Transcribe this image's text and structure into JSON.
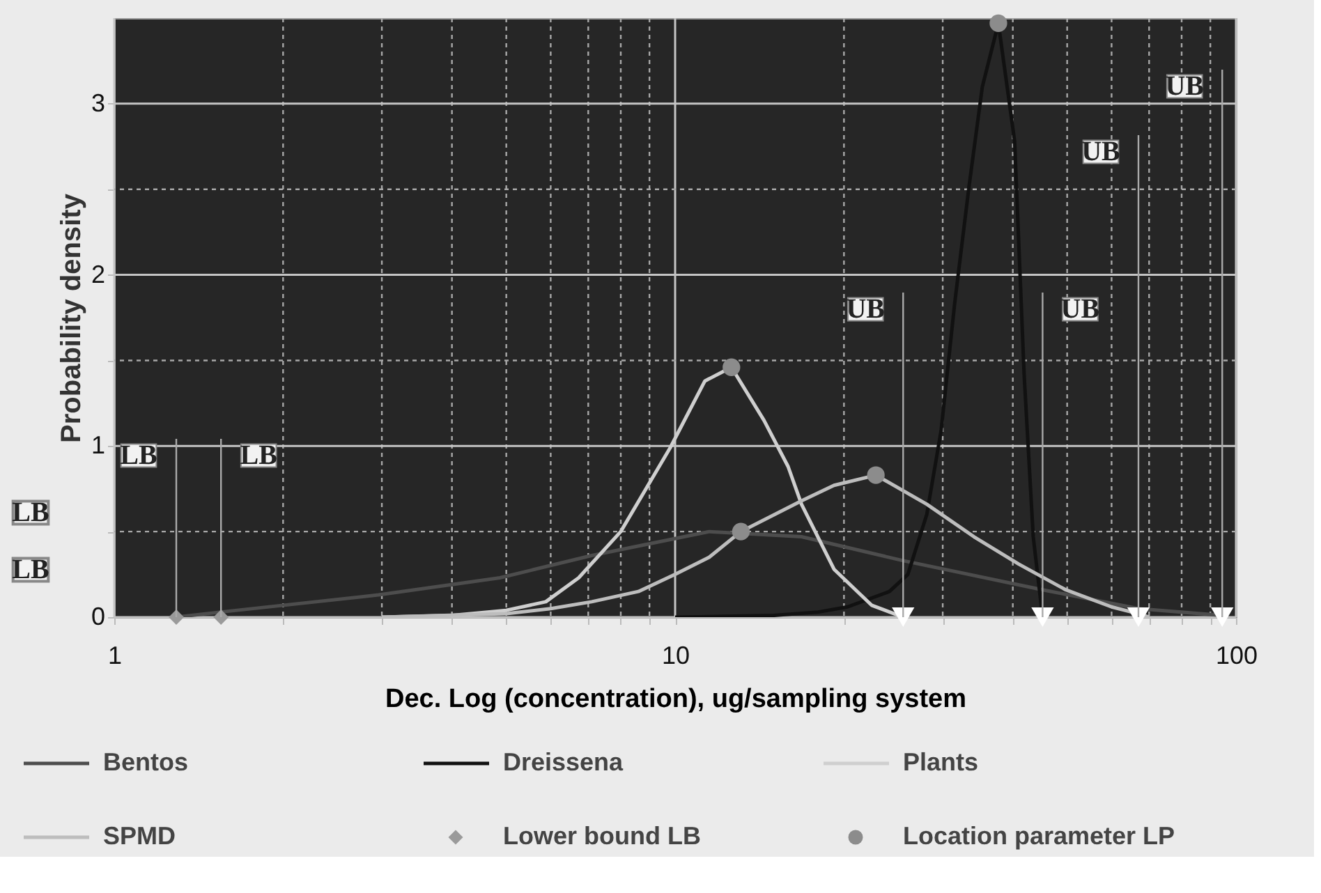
{
  "chart_data": {
    "type": "line",
    "xlabel": "Dec. Log (concentration), ug/sampling system",
    "ylabel": "Probability density",
    "log": "x",
    "xlim": [
      1,
      100
    ],
    "ylim": [
      0,
      3.5
    ],
    "xticks": [
      1,
      {
        "value": 2,
        "label": null
      },
      {
        "value": 3,
        "label": null
      },
      {
        "value": 4,
        "label": null
      },
      {
        "value": 5,
        "label": null
      },
      {
        "value": 6,
        "label": null
      },
      {
        "value": 7,
        "label": null
      },
      {
        "value": 8,
        "label": null
      },
      {
        "value": 9,
        "label": null
      },
      10,
      {
        "value": 20,
        "label": null
      },
      {
        "value": 30,
        "label": null
      },
      {
        "value": 40,
        "label": null
      },
      {
        "value": 50,
        "label": null
      },
      {
        "value": 60,
        "label": null
      },
      {
        "value": 70,
        "label": null
      },
      {
        "value": 80,
        "label": null
      },
      {
        "value": 90,
        "label": null
      },
      100
    ],
    "yticks": [
      0,
      {
        "value": 0.5,
        "label": null
      },
      1,
      {
        "value": 1.5,
        "label": null
      },
      2,
      {
        "value": 2.5,
        "label": null
      },
      3
    ],
    "grid": true,
    "legend": "bottom",
    "line_style": "solid",
    "series": [
      {
        "name": "Bentos",
        "color": "#4d4d4d",
        "x": [
          1.29,
          1.55,
          2.96,
          4.87,
          7.1,
          11.5,
          16.8,
          25.5,
          45.2,
          67,
          94.5
        ],
        "values": [
          0,
          0.03,
          0.13,
          0.23,
          0.36,
          0.5,
          0.47,
          0.33,
          0.16,
          0.05,
          0.01
        ]
      },
      {
        "name": "Dreissena",
        "color": "#111111",
        "x": [
          10,
          15,
          18,
          20.3,
          24.1,
          26,
          28.1,
          29.8,
          31.5,
          33.4,
          35.3,
          37.7,
          40.3,
          41.9,
          43.5,
          45.2
        ],
        "values": [
          0,
          0.01,
          0.03,
          0.06,
          0.15,
          0.25,
          0.6,
          1.09,
          1.83,
          2.51,
          3.1,
          3.47,
          2.78,
          1.42,
          0.47,
          0
        ]
      },
      {
        "name": "Plants",
        "color": "#cfcfcf",
        "x": [
          3,
          4,
          5,
          5.88,
          6.73,
          8,
          9.8,
          11.3,
          12.6,
          14.4,
          15.9,
          16.8,
          19.2,
          22.4,
          25.5
        ],
        "values": [
          0,
          0.01,
          0.04,
          0.09,
          0.23,
          0.5,
          0.99,
          1.38,
          1.46,
          1.15,
          0.88,
          0.66,
          0.28,
          0.07,
          0
        ]
      },
      {
        "name": "SPMD",
        "color": "#bdbdbd",
        "x": [
          3,
          5,
          6,
          7.1,
          8.6,
          10,
          11.5,
          13.1,
          16.8,
          19.2,
          22.8,
          28.1,
          34.1,
          41,
          49.7,
          60,
          67,
          70
        ],
        "values": [
          0,
          0.02,
          0.05,
          0.09,
          0.15,
          0.25,
          0.35,
          0.5,
          0.68,
          0.77,
          0.83,
          0.66,
          0.47,
          0.31,
          0.16,
          0.06,
          0.02,
          0
        ]
      },
      {
        "name": "Lower bound LB",
        "type": "scatter",
        "marker": "diamond",
        "color": "#9a9a9a",
        "x": [
          1.29,
          1.55
        ],
        "values": [
          0,
          0
        ]
      },
      {
        "name": "Location parameter LP",
        "type": "scatter",
        "marker": "circle",
        "color": "#8c8c8c",
        "x": [
          13.1,
          37.7,
          12.6,
          22.8
        ],
        "values": [
          0.5,
          3.47,
          1.46,
          0.83
        ]
      },
      {
        "type": "scatter",
        "marker": "triangle",
        "color": "#ffffff",
        "x": [
          25.5,
          45.2,
          67,
          94.5
        ],
        "values": [
          0,
          0,
          0,
          0
        ]
      }
    ],
    "annotations": [
      {
        "text": "LB",
        "x": 1.29,
        "y": 0
      },
      {
        "text": "LB",
        "x": 1.55,
        "y": 0
      },
      {
        "text": "UB",
        "x": 25.5,
        "y": 0
      },
      {
        "text": "UB",
        "x": 45.2,
        "y": 0
      },
      {
        "text": "UB",
        "x": 67,
        "y": 0
      },
      {
        "text": "UB",
        "x": 94.5,
        "y": 0
      },
      "LB",
      "LB"
    ]
  }
}
